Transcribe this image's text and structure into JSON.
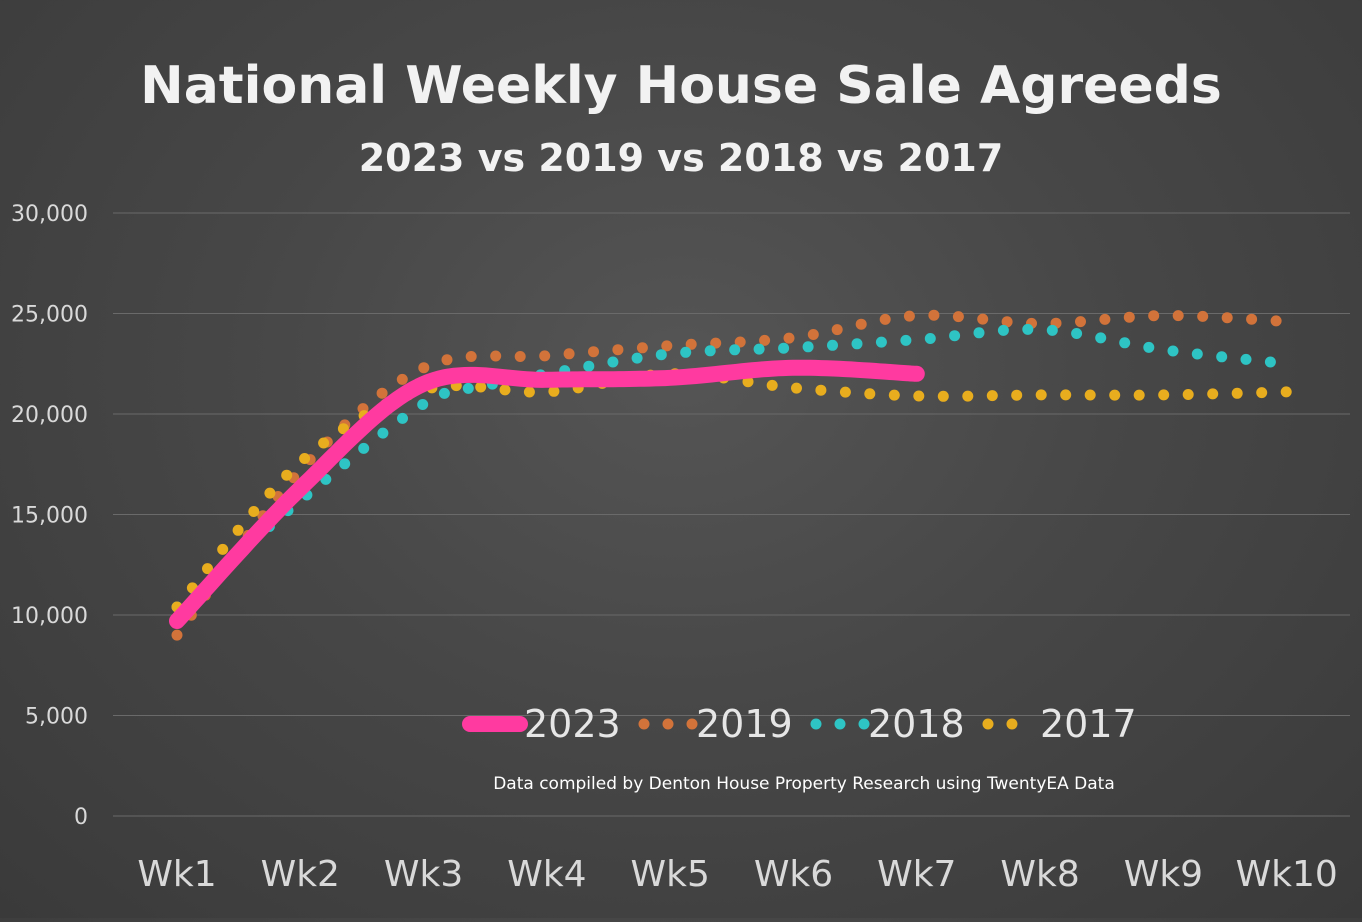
{
  "chart_data": {
    "type": "line",
    "title": "National Weekly House Sale Agreeds",
    "subtitle": "2023 vs 2019 vs 2018 vs 2017",
    "source_note": "Data compiled by Denton House Property Research using TwentyEA Data",
    "categories": [
      "Wk1",
      "Wk2",
      "Wk3",
      "Wk4",
      "Wk5",
      "Wk6",
      "Wk7",
      "Wk8",
      "Wk9",
      "Wk10"
    ],
    "ylim": [
      0,
      30000
    ],
    "yticks": [
      0,
      5000,
      10000,
      15000,
      20000,
      25000,
      30000
    ],
    "ytick_labels": [
      "0",
      "5,000",
      "10,000",
      "15,000",
      "20,000",
      "25,000",
      "30,000"
    ],
    "grid": true,
    "legend_position": "bottom-center",
    "series": [
      {
        "name": "2023",
        "style": "solid",
        "color": "#ff3aa0",
        "x": [
          1,
          2,
          3,
          4,
          5,
          6,
          7
        ],
        "values": [
          9700,
          16300,
          21500,
          21700,
          21800,
          22300,
          22000
        ]
      },
      {
        "name": "2019",
        "style": "dotted",
        "color": "#d2733a",
        "x": [
          1,
          2,
          3,
          4,
          5,
          6,
          7,
          8,
          9,
          10
        ],
        "values": [
          9000,
          17200,
          22300,
          22900,
          23400,
          23800,
          24900,
          24500,
          24900,
          24600
        ]
      },
      {
        "name": "2018",
        "style": "dotted",
        "color": "#2ec4c4",
        "x": [
          1,
          2,
          3,
          3.5,
          4,
          5,
          6,
          7,
          8,
          9,
          10
        ],
        "values": [
          10400,
          15700,
          20500,
          21400,
          22000,
          23000,
          23300,
          23700,
          24200,
          23200,
          22500
        ]
      },
      {
        "name": "2017",
        "style": "dotted",
        "color": "#e8ad1e",
        "x": [
          1,
          2,
          3,
          4,
          5,
          6,
          7,
          8,
          9,
          10
        ],
        "values": [
          10400,
          17600,
          21200,
          21100,
          22000,
          21300,
          20900,
          20950,
          20950,
          21100
        ]
      }
    ]
  }
}
